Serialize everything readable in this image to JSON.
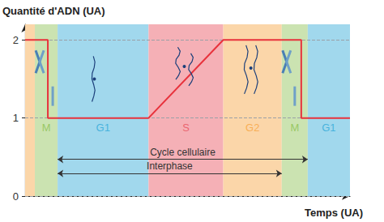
{
  "chart_data": {
    "type": "line",
    "x_label": "Temps (UA)",
    "y_label": "Quantité d'ADN (UA)",
    "xlim": [
      0,
      100
    ],
    "ylim": [
      0,
      2.2
    ],
    "yticks": [
      0,
      1,
      2
    ],
    "grid": true,
    "tick_labels": "y",
    "color": "#e8323c",
    "x": [
      0,
      7,
      7,
      38,
      61,
      85,
      85,
      100
    ],
    "values": [
      2,
      2,
      1,
      1,
      2,
      2,
      1,
      1
    ],
    "phases": [
      {
        "label": null,
        "start": 0,
        "end": 3,
        "color": "#f7a440"
      },
      {
        "label": "M",
        "start": 3,
        "end": 10,
        "color": "#8cc152"
      },
      {
        "label": "G1",
        "start": 10,
        "end": 38,
        "color": "#2fa8d8"
      },
      {
        "label": "S",
        "start": 38,
        "end": 61,
        "color": "#e8505c"
      },
      {
        "label": "G2",
        "start": 61,
        "end": 79,
        "color": "#f7a440"
      },
      {
        "label": "M",
        "start": 79,
        "end": 87,
        "color": "#8cc152"
      },
      {
        "label": "G1",
        "start": 87,
        "end": 100,
        "color": "#2fa8d8"
      }
    ],
    "annotations": [
      {
        "text": "Cycle cellulaire",
        "start": 10,
        "end": 87
      },
      {
        "text": "Interphase",
        "start": 10,
        "end": 79
      }
    ]
  }
}
